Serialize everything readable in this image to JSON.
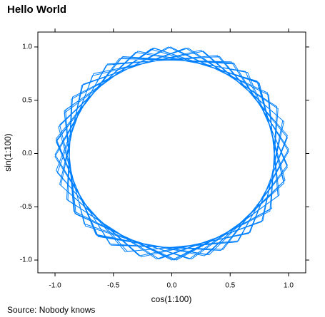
{
  "chart_data": {
    "type": "line",
    "title": "Hello World",
    "x_label": "cos(1:100)",
    "y_label": "sin(1:100)",
    "caption": "Source: Nobody knows",
    "color": "#0080ff",
    "xlim": [
      -1.147,
      1.147
    ],
    "ylim": [
      -1.12,
      1.14
    ],
    "xticks": [
      {
        "value": -1,
        "label": "-1.0"
      },
      {
        "value": -0.5,
        "label": "-0.5"
      },
      {
        "value": 0,
        "label": "0.0"
      },
      {
        "value": 0.5,
        "label": "0.5"
      },
      {
        "value": 1,
        "label": "1.0"
      }
    ],
    "yticks": [
      {
        "value": -1,
        "label": "-1.0"
      },
      {
        "value": -0.5,
        "label": "-0.5"
      },
      {
        "value": 0,
        "label": "0.0"
      },
      {
        "value": 0.5,
        "label": "0.5"
      },
      {
        "value": 1,
        "label": "1.0"
      }
    ],
    "x": [
      0.54,
      -0.42,
      -0.99,
      -0.65,
      0.28,
      0.96,
      0.75,
      -0.15,
      -0.91,
      -0.84,
      0.0,
      0.84,
      0.91,
      0.14,
      -0.76,
      -0.96,
      -0.28,
      0.66,
      0.99,
      0.41,
      -0.55,
      -1.0,
      -0.53,
      0.42,
      0.99,
      0.65,
      -0.29,
      -0.96,
      -0.75,
      0.15,
      0.91,
      0.83,
      -0.01,
      -0.85,
      -0.9,
      -0.13,
      0.77,
      0.96,
      0.27,
      -0.67,
      -0.99,
      -0.4,
      0.56,
      1.0,
      0.53,
      -0.43,
      -0.99,
      -0.64,
      0.3,
      0.96,
      0.74,
      -0.16,
      -0.92,
      -0.83,
      0.02,
      0.85,
      0.9,
      0.12,
      -0.77,
      -0.95,
      -0.26,
      0.67,
      0.99,
      0.39,
      -0.56,
      -1.0,
      -0.52,
      0.44,
      0.99,
      0.63,
      -0.31,
      -0.97,
      -0.74,
      0.17,
      0.92,
      0.82,
      -0.03,
      -0.86,
      -0.89,
      -0.11,
      0.78,
      0.95,
      0.25,
      -0.68,
      -0.98,
      -0.38,
      0.57,
      1.0,
      0.51,
      -0.45,
      -0.99,
      -0.63,
      0.32,
      0.97,
      0.73,
      -0.18,
      -0.92,
      -0.82,
      0.04,
      0.86
    ],
    "series": [
      {
        "values": [
          0.84,
          0.91,
          0.14,
          -0.76,
          -0.96,
          -0.28,
          0.66,
          0.99,
          0.41,
          -0.54,
          -1.0,
          -0.54,
          0.42,
          0.99,
          0.65,
          -0.29,
          -0.96,
          -0.75,
          0.15,
          0.91,
          0.84,
          -0.01,
          -0.85,
          -0.91,
          -0.13,
          0.76,
          0.96,
          0.27,
          -0.66,
          -0.99,
          -0.4,
          0.55,
          1.0,
          0.53,
          -0.43,
          -0.99,
          -0.64,
          0.3,
          0.96,
          0.75,
          -0.16,
          -0.92,
          -0.83,
          0.02,
          0.85,
          0.9,
          0.12,
          -0.77,
          -0.95,
          -0.26,
          0.67,
          0.99,
          0.4,
          -0.56,
          -1.0,
          -0.52,
          0.44,
          0.99,
          0.64,
          -0.3,
          -0.97,
          -0.74,
          0.17,
          0.92,
          0.83,
          -0.03,
          -0.86,
          -0.9,
          -0.11,
          0.77,
          0.95,
          0.25,
          -0.68,
          -0.99,
          -0.39,
          0.57,
          1.0,
          0.51,
          -0.44,
          -0.99,
          -0.63,
          0.31,
          0.97,
          0.73,
          -0.18,
          -0.92,
          -0.82,
          0.04,
          0.86,
          0.89,
          0.11,
          -0.78,
          -0.95,
          -0.25,
          0.68,
          0.98,
          0.38,
          -0.57,
          -1.0,
          -0.51
        ]
      }
    ]
  }
}
